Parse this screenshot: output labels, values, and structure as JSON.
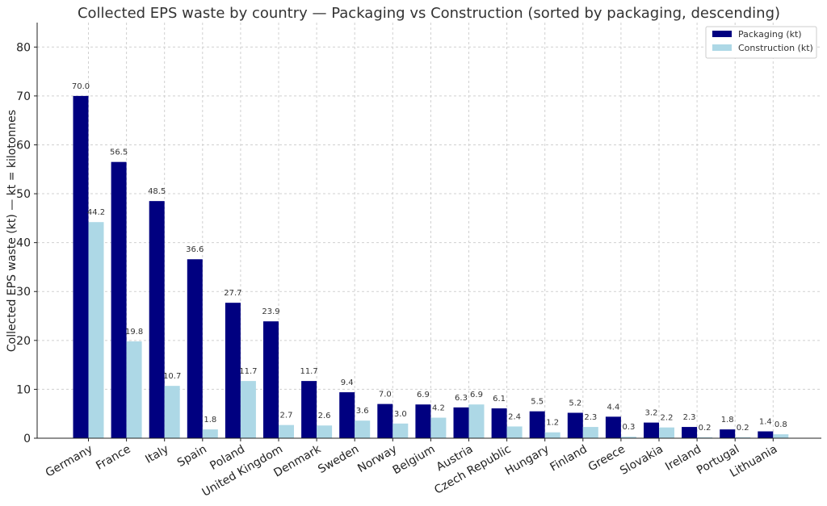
{
  "chart_data": {
    "type": "bar",
    "title": "Collected EPS waste by country — Packaging vs Construction (sorted by packaging, descending)",
    "xlabel": "",
    "ylabel": "Collected EPS waste (kt) — kt = kilotonnes",
    "ylim": [
      0,
      85
    ],
    "yticks": [
      0,
      10,
      20,
      30,
      40,
      50,
      60,
      70,
      80
    ],
    "grid": true,
    "legend_position": "top-right",
    "categories": [
      "Germany",
      "France",
      "Italy",
      "Spain",
      "Poland",
      "United Kingdom",
      "Denmark",
      "Sweden",
      "Norway",
      "Belgium",
      "Austria",
      "Czech Republic",
      "Hungary",
      "Finland",
      "Greece",
      "Slovakia",
      "Ireland",
      "Portugal",
      "Lithuania"
    ],
    "series": [
      {
        "name": "Packaging (kt)",
        "color": "#000080",
        "values": [
          70.0,
          56.5,
          48.5,
          36.6,
          27.7,
          23.9,
          11.7,
          9.4,
          7.0,
          6.9,
          6.3,
          6.1,
          5.5,
          5.2,
          4.4,
          3.2,
          2.3,
          1.8,
          1.4
        ]
      },
      {
        "name": "Construction (kt)",
        "color": "#add8e6",
        "values": [
          44.2,
          19.8,
          10.7,
          1.8,
          11.7,
          2.7,
          2.6,
          3.6,
          3.0,
          4.2,
          6.9,
          2.4,
          1.2,
          2.3,
          0.3,
          2.2,
          0.2,
          0.2,
          0.8
        ]
      }
    ]
  }
}
